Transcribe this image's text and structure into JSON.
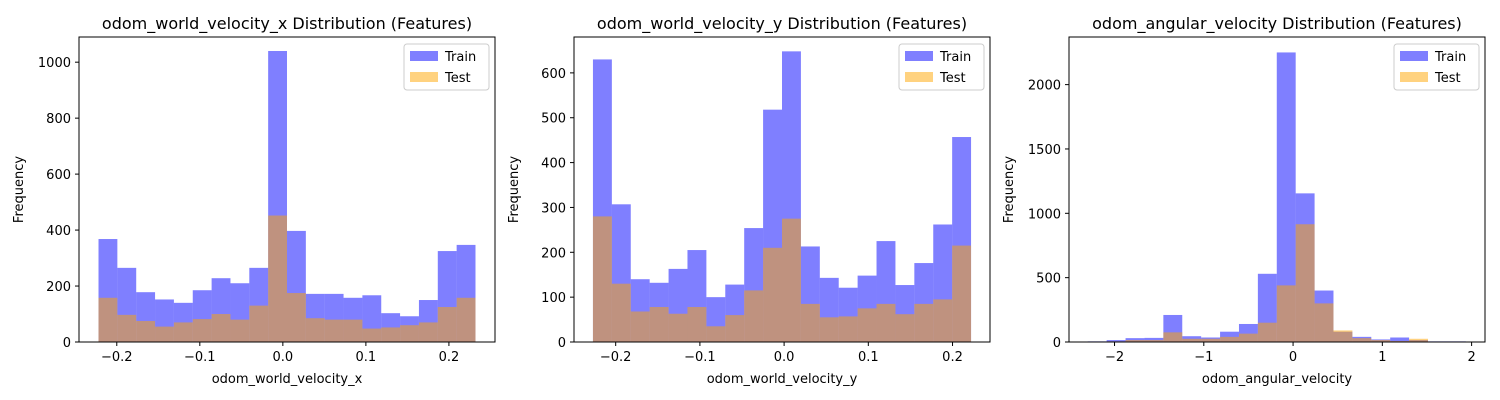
{
  "colors": {
    "train": "#0000ff",
    "test": "#ffa500",
    "bar_alpha": 0.5
  },
  "chart_data": [
    {
      "type": "histogram",
      "title": "odom_world_velocity_x Distribution (Features)",
      "xlabel": "odom_world_velocity_x",
      "ylabel": "Frequency",
      "xlim": [
        -0.2455,
        0.2555
      ],
      "ylim": [
        0,
        1090
      ],
      "xticks": [
        -0.2,
        -0.1,
        0.0,
        0.1,
        0.2
      ],
      "xtick_labels": [
        "−0.2",
        "−0.1",
        "0.0",
        "0.1",
        "0.2"
      ],
      "yticks": [
        0,
        200,
        400,
        600,
        800,
        1000
      ],
      "ytick_labels": [
        "0",
        "200",
        "400",
        "600",
        "800",
        "1000"
      ],
      "bin_start": -0.222,
      "bin_end": 0.232,
      "legend": {
        "position": "upper right",
        "entries": [
          "Train",
          "Test"
        ]
      },
      "series": [
        {
          "name": "Train",
          "color": "#0000ff",
          "values": [
            368,
            265,
            178,
            152,
            140,
            185,
            228,
            210,
            265,
            1040,
            397,
            172,
            172,
            158,
            167,
            103,
            92,
            150,
            325,
            347
          ]
        },
        {
          "name": "Test",
          "color": "#ffa500",
          "values": [
            158,
            97,
            75,
            55,
            70,
            82,
            100,
            80,
            130,
            452,
            175,
            85,
            80,
            80,
            48,
            52,
            60,
            70,
            125,
            158
          ]
        }
      ]
    },
    {
      "type": "histogram",
      "title": "odom_world_velocity_y Distribution (Features)",
      "xlabel": "odom_world_velocity_y",
      "ylabel": "Frequency",
      "xlim": [
        -0.2495,
        0.2445
      ],
      "ylim": [
        0,
        680
      ],
      "xticks": [
        -0.2,
        -0.1,
        0.0,
        0.1,
        0.2
      ],
      "xtick_labels": [
        "−0.2",
        "−0.1",
        "0.0",
        "0.1",
        "0.2"
      ],
      "yticks": [
        0,
        100,
        200,
        300,
        400,
        500,
        600
      ],
      "ytick_labels": [
        "0",
        "100",
        "200",
        "300",
        "400",
        "500",
        "600"
      ],
      "bin_start": -0.227,
      "bin_end": 0.222,
      "legend": {
        "position": "upper right",
        "entries": [
          "Train",
          "Test"
        ]
      },
      "series": [
        {
          "name": "Train",
          "color": "#0000ff",
          "values": [
            630,
            307,
            140,
            132,
            163,
            205,
            100,
            128,
            254,
            518,
            648,
            213,
            143,
            121,
            148,
            225,
            127,
            176,
            262,
            457
          ]
        },
        {
          "name": "Test",
          "color": "#ffa500",
          "values": [
            280,
            130,
            68,
            78,
            63,
            78,
            35,
            60,
            115,
            210,
            275,
            85,
            55,
            57,
            75,
            85,
            62,
            85,
            95,
            215
          ]
        }
      ]
    },
    {
      "type": "histogram",
      "title": "odom_angular_velocity Distribution (Features)",
      "xlabel": "odom_angular_velocity",
      "ylabel": "Frequency",
      "xlim": [
        -2.51,
        2.15
      ],
      "ylim": [
        0,
        2370
      ],
      "xticks": [
        -2,
        -1,
        0,
        1,
        2
      ],
      "xtick_labels": [
        "−2",
        "−1",
        "0",
        "1",
        "2"
      ],
      "yticks": [
        0,
        500,
        1000,
        1500,
        2000
      ],
      "ytick_labels": [
        "0",
        "500",
        "1000",
        "1500",
        "2000"
      ],
      "bin_start": -2.3,
      "bin_end": 1.935,
      "legend": {
        "position": "upper right",
        "entries": [
          "Train",
          "Test"
        ]
      },
      "series": [
        {
          "name": "Train",
          "color": "#0000ff",
          "values": [
            5,
            15,
            30,
            32,
            210,
            45,
            35,
            80,
            140,
            530,
            2250,
            1155,
            400,
            80,
            40,
            20,
            35,
            15,
            5,
            5
          ]
        },
        {
          "name": "Test",
          "color": "#ffa500",
          "values": [
            2,
            5,
            15,
            15,
            75,
            25,
            25,
            40,
            65,
            150,
            440,
            915,
            300,
            90,
            30,
            15,
            8,
            25,
            3,
            2
          ]
        }
      ]
    }
  ]
}
